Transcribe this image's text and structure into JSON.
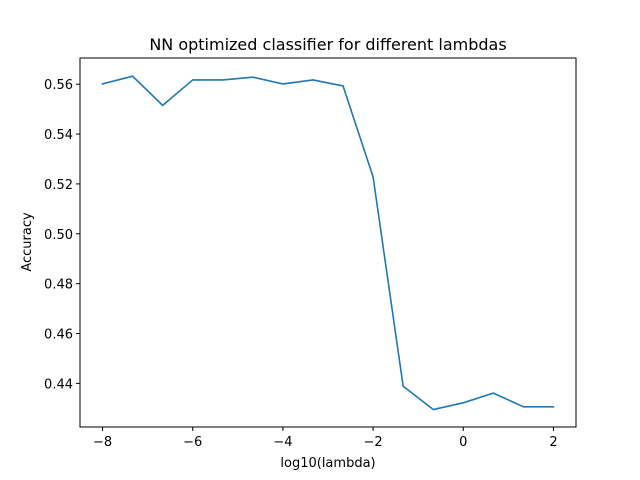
{
  "chart_data": {
    "type": "line",
    "title": "NN optimized classifier for different lambdas",
    "xlabel": "log10(lambda)",
    "ylabel": "Accuracy",
    "xlim": [
      -8.5,
      2.5
    ],
    "ylim": [
      0.4225,
      0.5705
    ],
    "xticks": [
      -8,
      -6,
      -4,
      -2,
      0,
      2
    ],
    "xtick_labels": [
      "−8",
      "−6",
      "−4",
      "−2",
      "0",
      "2"
    ],
    "yticks": [
      0.44,
      0.46,
      0.48,
      0.5,
      0.52,
      0.54,
      0.56
    ],
    "ytick_labels": [
      "0.44",
      "0.46",
      "0.48",
      "0.50",
      "0.52",
      "0.54",
      "0.56"
    ],
    "grid": false,
    "legend": "none",
    "series": [
      {
        "color": "#1f77b4",
        "x": [
          -8.0,
          -7.3333,
          -6.6667,
          -6.0,
          -5.3333,
          -4.6667,
          -4.0,
          -3.3333,
          -2.6667,
          -2.0,
          -1.3333,
          -0.6667,
          0.0,
          0.6667,
          1.3333,
          2.0
        ],
        "y": [
          0.5601,
          0.5632,
          0.5515,
          0.5617,
          0.5617,
          0.5628,
          0.5601,
          0.5617,
          0.5593,
          0.5228,
          0.4389,
          0.4295,
          0.4322,
          0.4361,
          0.4306,
          0.4306
        ]
      }
    ]
  }
}
